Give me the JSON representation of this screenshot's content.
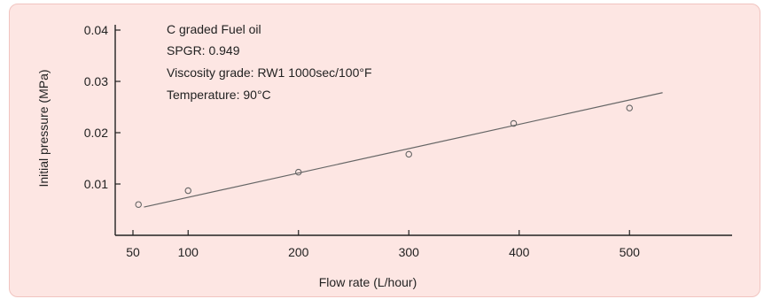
{
  "chart_data": {
    "type": "scatter",
    "x_ticks": [
      "50",
      "100",
      "200",
      "300",
      "400",
      "500"
    ],
    "y_ticks": [
      "0.01",
      "0.02",
      "0.03",
      "0.04"
    ],
    "xlabel": "Flow rate (L/hour)",
    "ylabel": "Initial pressure (MPa)",
    "xlim": [
      0,
      535
    ],
    "ylim": [
      0,
      0.041
    ],
    "grid": false,
    "annotations": [
      "C graded Fuel oil",
      "SPGR: 0.949",
      "Viscosity grade: RW1  1000sec/100°F",
      "Temperature: 90°C"
    ],
    "series": [
      {
        "x": [
          55,
          100,
          200,
          300,
          395,
          500
        ],
        "y": [
          0.006,
          0.0087,
          0.0123,
          0.0158,
          0.0218,
          0.0248
        ]
      }
    ],
    "trend_line": {
      "x": [
        60,
        530
      ],
      "y": [
        0.0055,
        0.0278
      ]
    },
    "colors": {
      "background": "#fde6e3",
      "axis": "#222222",
      "marker": "#666666",
      "trend_line": "#666666"
    }
  }
}
